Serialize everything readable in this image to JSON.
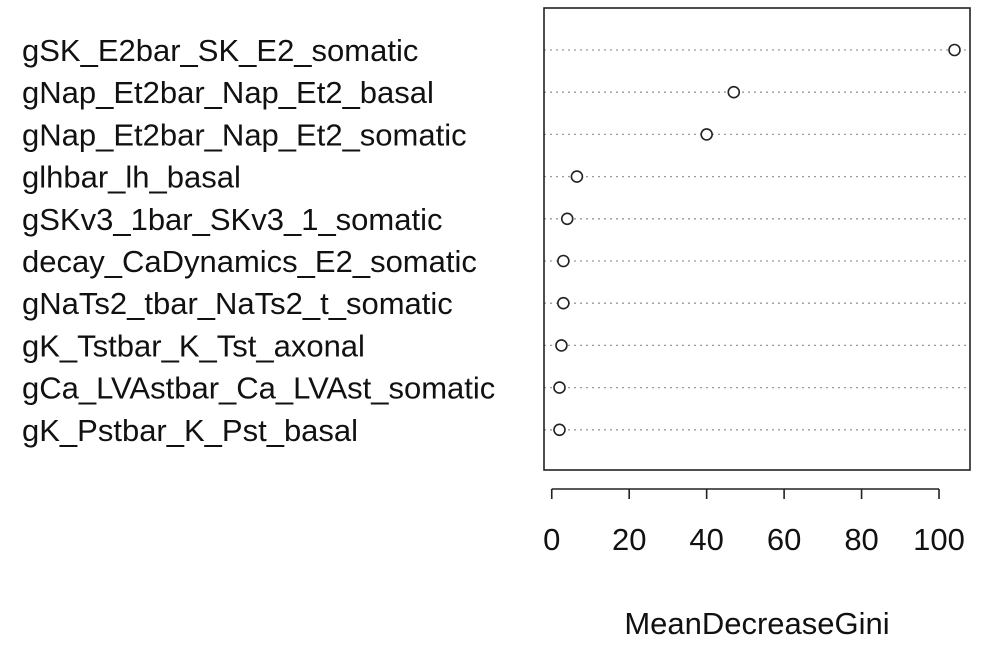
{
  "chart_data": {
    "type": "scatter",
    "categories": [
      "gSK_E2bar_SK_E2_somatic",
      "gNap_Et2bar_Nap_Et2_basal",
      "gNap_Et2bar_Nap_Et2_somatic",
      "glhbar_lh_basal",
      "gSKv3_1bar_SKv3_1_somatic",
      "decay_CaDynamics_E2_somatic",
      "gNaTs2_tbar_NaTs2_t_somatic",
      "gK_Tstbar_K_Tst_axonal",
      "gCa_LVAstbar_Ca_LVAst_somatic",
      "gK_Pstbar_K_Pst_basal"
    ],
    "values": [
      104,
      47,
      40,
      6.5,
      4,
      3,
      3,
      2.5,
      2,
      2
    ],
    "xlabel": "MeanDecreaseGini",
    "ylabel": "",
    "xlim": [
      -2,
      108
    ],
    "xticks": [
      0,
      20,
      40,
      60,
      80,
      100
    ],
    "xtick_labels": [
      "0",
      "20",
      "40",
      "60",
      "80",
      "100"
    ],
    "grid": "dotted horizontal guide lines",
    "legend": "none",
    "colors": {
      "marker_stroke": "#222222",
      "marker_fill": "#ffffff",
      "guide": "#9a9a9a"
    }
  }
}
